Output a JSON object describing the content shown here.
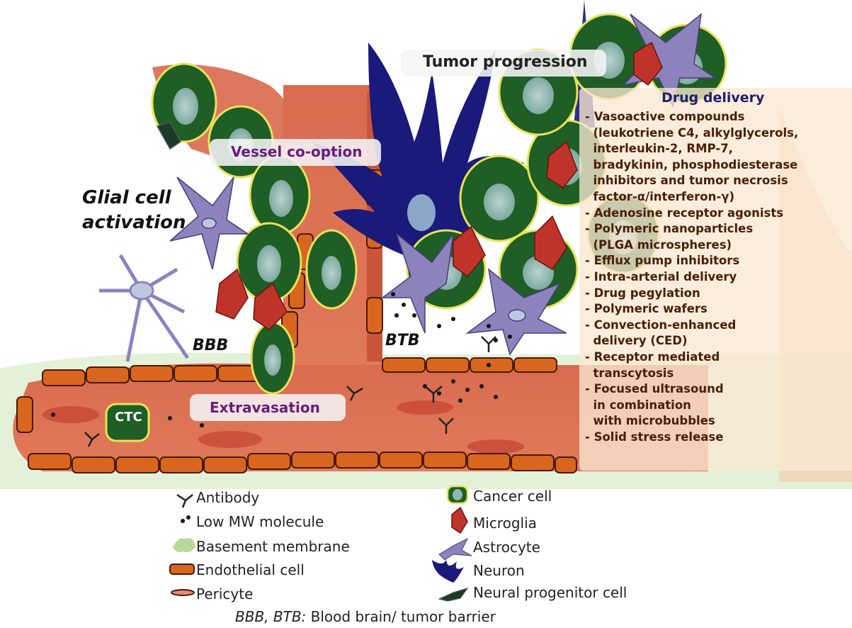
{
  "labels": {
    "tumor_progression": "Tumor progression",
    "vessel_cooption": "Vessel co-option",
    "glial_line1": "Glial cell",
    "glial_line2": "activation",
    "bbb": "BBB",
    "btb": "BTB",
    "extravasation": "Extravasation",
    "ctc": "CTC"
  },
  "drug_delivery": {
    "title": "Drug delivery",
    "items": [
      "- Vasoactive compounds",
      "  (leukotriene C4, alkylglycerols,",
      "  interleukin-2, RMP-7,",
      "  bradykinin, phosphodiesterase",
      "  inhibitors and tumor necrosis",
      "  factor-α/interferon-γ)",
      "- Adenosine receptor agonists",
      "- Polymeric nanoparticles",
      "  (PLGA microspheres)",
      "- Efflux pump inhibitors",
      "- Intra-arterial delivery",
      "- Drug pegylation",
      "- Polymeric wafers",
      "- Convection-enhanced",
      "  delivery (CED)",
      "- Receptor mediated",
      "  transcytosis",
      "- Focused ultrasound",
      "  in combination",
      "  with microbubbles",
      "- Solid stress release"
    ]
  },
  "legend": {
    "left": [
      "Antibody",
      "Low MW molecule",
      "Basement membrane",
      "Endothelial cell",
      "Pericyte"
    ],
    "right": [
      "Cancer cell",
      "Microglia",
      "Astrocyte",
      "Neuron",
      "Neural progenitor cell"
    ]
  },
  "footnote": {
    "abbr": "BBB, BTB:",
    "text": " Blood brain/ tumor barrier"
  },
  "colors": {
    "vessel": "#d9694c",
    "endothelial": "#d9661f",
    "cancer_cell": "#1f5e24",
    "cancer_nucleus": "#8fb8b0",
    "microglia": "#c0332b",
    "astrocyte": "#8c83bd",
    "neuron": "#1a1a7a",
    "basement_membrane": "#b7d99a"
  }
}
